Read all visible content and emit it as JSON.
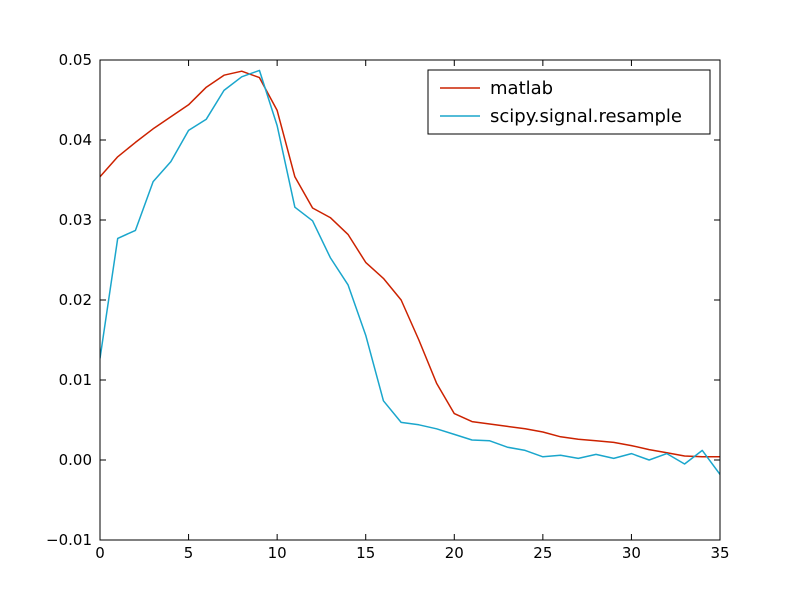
{
  "chart_data": {
    "type": "line",
    "title": "",
    "xlabel": "",
    "ylabel": "",
    "xlim": [
      0,
      35
    ],
    "ylim": [
      -0.01,
      0.05
    ],
    "xticks": [
      0,
      5,
      10,
      15,
      20,
      25,
      30,
      35
    ],
    "xtick_labels": [
      "0",
      "5",
      "10",
      "15",
      "20",
      "25",
      "30",
      "35"
    ],
    "yticks": [
      -0.01,
      0.0,
      0.01,
      0.02,
      0.03,
      0.04,
      0.05
    ],
    "ytick_labels": [
      "−0.01",
      "0.00",
      "0.01",
      "0.02",
      "0.03",
      "0.04",
      "0.05"
    ],
    "grid": false,
    "legend_position": "top-right",
    "x": [
      0,
      1,
      2,
      3,
      4,
      5,
      6,
      7,
      8,
      9,
      10,
      11,
      12,
      13,
      14,
      15,
      16,
      17,
      18,
      19,
      20,
      21,
      22,
      23,
      24,
      25,
      26,
      27,
      28,
      29,
      30,
      31,
      32,
      33,
      34,
      35
    ],
    "series": [
      {
        "name": "matlab",
        "color": "#cc2200",
        "values": [
          0.0354,
          0.0379,
          0.0397,
          0.0414,
          0.0429,
          0.0444,
          0.0466,
          0.0481,
          0.0486,
          0.0478,
          0.0437,
          0.0354,
          0.0315,
          0.0303,
          0.0282,
          0.0247,
          0.0227,
          0.02,
          0.015,
          0.0096,
          0.0058,
          0.0048,
          0.0045,
          0.0042,
          0.0039,
          0.0035,
          0.0029,
          0.0026,
          0.0024,
          0.0022,
          0.0018,
          0.0013,
          0.0009,
          0.0005,
          0.0004,
          0.0004
        ]
      },
      {
        "name": "scipy.signal.resample",
        "color": "#1aa6cc",
        "values": [
          0.0127,
          0.0277,
          0.0287,
          0.0348,
          0.0373,
          0.0412,
          0.0426,
          0.0462,
          0.0479,
          0.0487,
          0.0418,
          0.0316,
          0.0299,
          0.0253,
          0.0219,
          0.0156,
          0.0074,
          0.0047,
          0.0044,
          0.0039,
          0.0032,
          0.0025,
          0.0024,
          0.0016,
          0.0012,
          0.0004,
          0.0006,
          0.0002,
          0.0007,
          0.0002,
          0.0008,
          0.0,
          0.0008,
          -0.0005,
          0.0012,
          -0.0018
        ]
      }
    ]
  }
}
